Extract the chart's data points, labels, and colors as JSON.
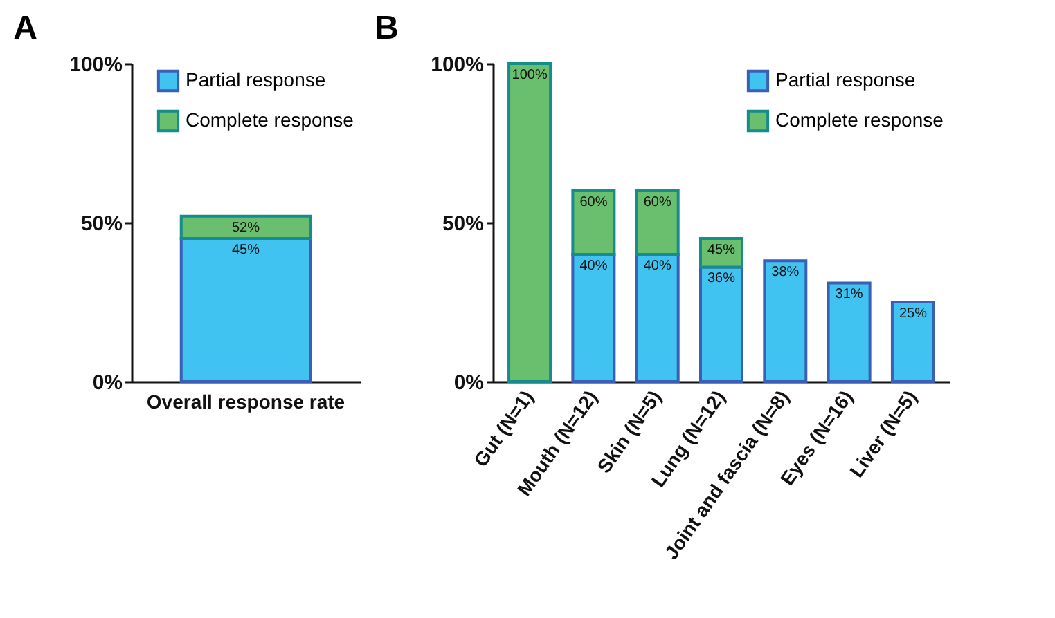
{
  "chart_data": [
    {
      "type": "bar",
      "title": "A",
      "categories": [
        "Overall response rate"
      ],
      "stacked": true,
      "totals": [
        "52%"
      ],
      "ylim": [
        0,
        100
      ],
      "yticks": [
        {
          "value": 0,
          "label": "0%"
        },
        {
          "value": 50,
          "label": "50%"
        },
        {
          "value": 100,
          "label": "100%"
        }
      ],
      "legend": "top right",
      "series": [
        {
          "name": "Partial response",
          "color": "#41c3f1",
          "values": [
            45
          ],
          "value_labels": [
            "45%"
          ]
        },
        {
          "name": "Complete response",
          "color": "#6abf6e",
          "values": [
            7
          ]
        }
      ]
    },
    {
      "type": "bar",
      "title": "B",
      "categories": [
        "Gut (N=1)",
        "Mouth (N=12)",
        "Skin (N=5)",
        "Lung (N=12)",
        "Joint and fascia (N=8)",
        "Eyes (N=16)",
        "Liver (N=5)"
      ],
      "stacked": true,
      "totals": [
        "100%",
        "60%",
        "60%",
        "45%",
        null,
        null,
        null
      ],
      "ylim": [
        0,
        100
      ],
      "yticks": [
        {
          "value": 0,
          "label": "0%"
        },
        {
          "value": 50,
          "label": "50%"
        },
        {
          "value": 100,
          "label": "100%"
        }
      ],
      "legend": "top right",
      "series": [
        {
          "name": "Partial response",
          "color": "#41c3f1",
          "values": [
            null,
            40,
            40,
            36,
            38,
            31,
            25
          ],
          "value_labels": [
            null,
            "40%",
            "40%",
            "36%",
            "38%",
            "31%",
            "25%"
          ]
        },
        {
          "name": "Complete response",
          "color": "#6abf6e",
          "values": [
            100,
            20,
            20,
            9,
            null,
            null,
            null
          ]
        }
      ]
    }
  ]
}
